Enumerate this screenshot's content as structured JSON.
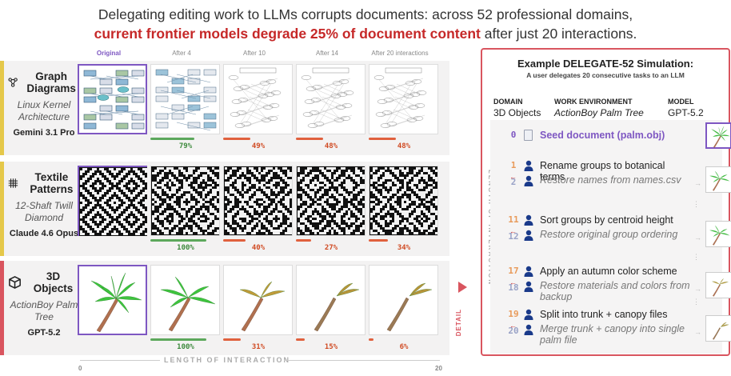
{
  "title": {
    "line1": "Delegating editing work to LLMs corrupts documents: across 52 professional domains,",
    "line2_highlight": "current frontier models degrade 25% of document content",
    "line2_rest": " after just 20 interactions."
  },
  "columns": [
    "Original",
    "After 4",
    "After 10",
    "After 14",
    "After 20 interactions"
  ],
  "rows": [
    {
      "icon": "graph-icon",
      "name": "Graph Diagrams",
      "subject": "Linux Kernel Architecture",
      "model": "Gemini 3.1 Pro",
      "scores": [
        "79%",
        "49%",
        "48%",
        "48%"
      ],
      "score_values": [
        79,
        49,
        48,
        48
      ]
    },
    {
      "icon": "textile-icon",
      "name": "Textile Patterns",
      "subject": "12-Shaft Twill Diamond",
      "model": "Claude 4.6 Opus",
      "scores": [
        "100%",
        "40%",
        "27%",
        "34%"
      ],
      "score_values": [
        100,
        40,
        27,
        34
      ]
    },
    {
      "icon": "cube-icon",
      "name": "3D Objects",
      "subject": "ActionBoy Palm Tree",
      "model": "GPT-5.2",
      "scores": [
        "100%",
        "31%",
        "15%",
        "6%"
      ],
      "score_values": [
        100,
        31,
        15,
        6
      ]
    }
  ],
  "axis": {
    "label": "LENGTH OF INTERACTION",
    "start": "0",
    "end": "20"
  },
  "detail_label": "DETAIL",
  "colors": {
    "good": "#5ca85c",
    "bad": "#e0613e",
    "accent": "#d9555f",
    "seed": "#7e57c2"
  },
  "panel": {
    "title": "Example DELEGATE-52 Simulation:",
    "subtitle": "A user delegates 20 consecutive tasks to an LLM",
    "domain_key": "DOMAIN",
    "domain_val": "3D Objects",
    "env_key": "WORK ENVIRONMENT",
    "env_val": "ActionBoy Palm Tree",
    "model_key": "MODEL",
    "model_val": "GPT-5.2",
    "vaxis": "LENGTH OF INTERACTION",
    "seed_num": "0",
    "seed_text": "Seed document (palm.obj)",
    "steps": [
      {
        "n1": "1",
        "t1": "Rename groups to botanical terms",
        "n2": "2",
        "t2": "Restore names from names.csv"
      },
      {
        "n1": "11",
        "t1": "Sort groups by centroid height",
        "n2": "12",
        "t2": "Restore original group ordering"
      },
      {
        "n1": "17",
        "t1": "Apply an autumn color scheme",
        "n2": "18",
        "t2": "Restore materials and colors from backup"
      },
      {
        "n1": "19",
        "t1": "Split into trunk + canopy files",
        "n2": "20",
        "t2": "Merge trunk + canopy into single palm file"
      }
    ]
  }
}
